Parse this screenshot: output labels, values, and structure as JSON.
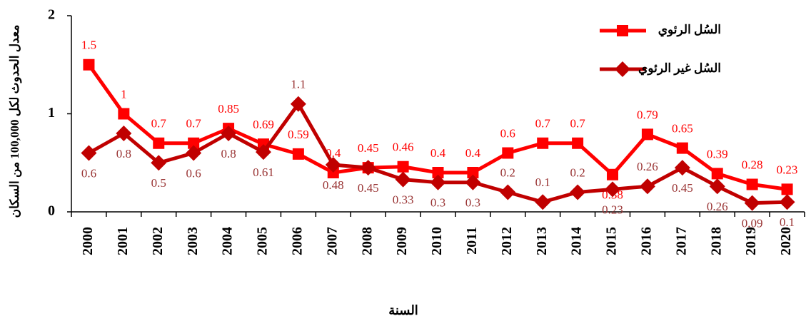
{
  "chart_data": {
    "type": "line",
    "x_label": "السنة",
    "y_label": "معدل الحدوث لكل 100,000 من السكان",
    "categories": [
      "2000",
      "2001",
      "2002",
      "2003",
      "2004",
      "2005",
      "2006",
      "2007",
      "2008",
      "2009",
      "2010",
      "2011",
      "2012",
      "2013",
      "2014",
      "2015",
      "2016",
      "2017",
      "2018",
      "2019",
      "2020"
    ],
    "series": [
      {
        "name": "السُل الرئوي",
        "color": "#ff0000",
        "marker": "square",
        "values": [
          1.5,
          1,
          0.7,
          0.7,
          0.85,
          0.69,
          0.59,
          0.4,
          0.45,
          0.46,
          0.4,
          0.4,
          0.6,
          0.7,
          0.7,
          0.38,
          0.79,
          0.65,
          0.39,
          0.28,
          0.23
        ]
      },
      {
        "name": "السُل غير الرئوي",
        "color": "#c00000",
        "marker": "diamond",
        "values": [
          0.6,
          0.8,
          0.5,
          0.6,
          0.8,
          0.61,
          1.1,
          0.48,
          0.45,
          0.33,
          0.3,
          0.3,
          0.2,
          0.1,
          0.2,
          0.23,
          0.26,
          0.45,
          0.26,
          0.09,
          0.1
        ]
      }
    ],
    "ylim": [
      0,
      2
    ],
    "yticks": [
      0,
      1,
      2
    ],
    "legend": "top-right"
  }
}
